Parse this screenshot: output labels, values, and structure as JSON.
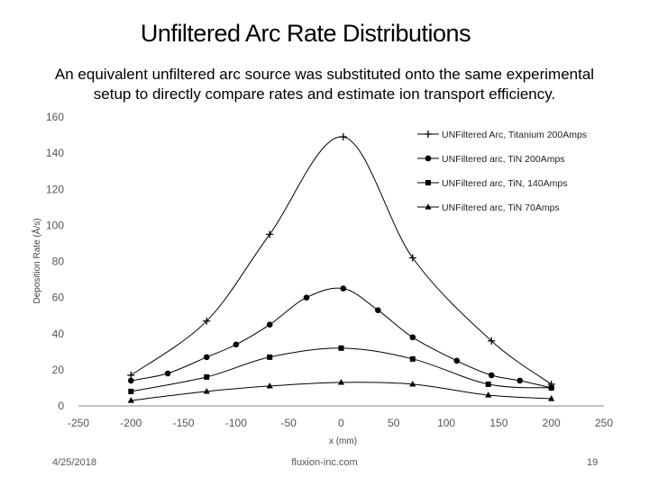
{
  "slide": {
    "title": "Unfiltered Arc Rate Distributions",
    "subtitle_line1": "An equivalent unfiltered arc source was substituted onto the same experimental",
    "subtitle_line2": "setup to directly compare rates and estimate ion transport efficiency."
  },
  "footer": {
    "date": "4/25/2018",
    "site": "fluxion-inc.com",
    "page": "19"
  },
  "chart_data": {
    "type": "scatter",
    "title": "",
    "xlabel": "x (mm)",
    "ylabel": "Deposition Rate (Å/s)",
    "xlim": [
      -250,
      250
    ],
    "ylim": [
      0,
      160
    ],
    "xticks": [
      -250,
      -200,
      -150,
      -100,
      -50,
      0,
      50,
      100,
      150,
      200,
      250
    ],
    "yticks": [
      0,
      20,
      40,
      60,
      80,
      100,
      120,
      140,
      160
    ],
    "grid": false,
    "legend_position": "top-right",
    "series": [
      {
        "name": "UNFiltered Arc, Titanium 200Amps",
        "marker": "plus",
        "color": "#000000",
        "x": [
          -200,
          -128,
          -68,
          2,
          68,
          143,
          200
        ],
        "y": [
          17,
          47,
          95,
          149,
          82,
          36,
          12
        ]
      },
      {
        "name": "UNFiltered arc, TiN 200Amps",
        "marker": "circle",
        "color": "#000000",
        "x": [
          -200,
          -165,
          -128,
          -100,
          -68,
          -33,
          2,
          35,
          68,
          110,
          143,
          170,
          200
        ],
        "y": [
          14,
          18,
          27,
          34,
          45,
          60,
          65,
          53,
          38,
          25,
          17,
          14,
          10
        ]
      },
      {
        "name": "UNFiltered arc, TiN, 140Amps",
        "marker": "square",
        "color": "#000000",
        "x": [
          -200,
          -128,
          -68,
          0,
          68,
          140,
          200
        ],
        "y": [
          8,
          16,
          27,
          32,
          26,
          12,
          10
        ]
      },
      {
        "name": "UNFiltered arc, TiN 70Amps",
        "marker": "triangle",
        "color": "#000000",
        "x": [
          -200,
          -128,
          -68,
          0,
          68,
          140,
          200
        ],
        "y": [
          3,
          8,
          11,
          13,
          12,
          6,
          4
        ]
      }
    ]
  }
}
